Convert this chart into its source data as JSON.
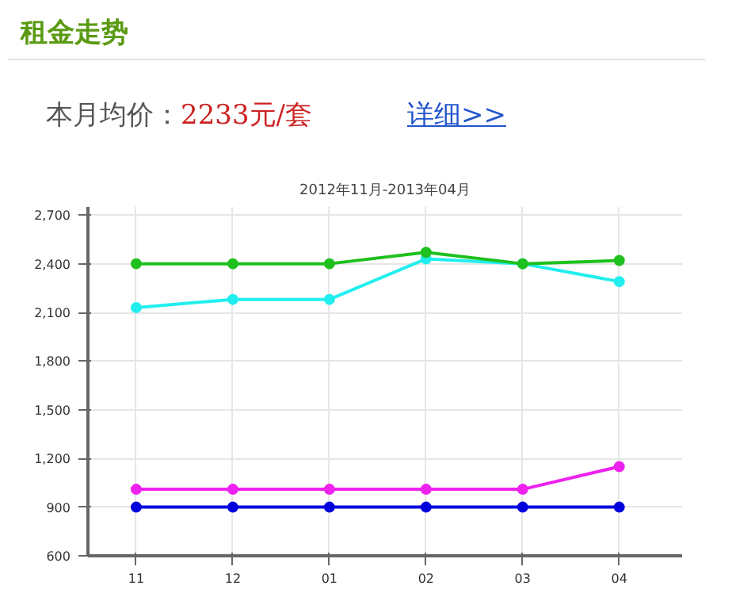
{
  "chart_data": {
    "type": "line",
    "title": "租金走势",
    "subtitle": "2012年11月-2013年04月",
    "annotations": [
      "本月均价：",
      "2233元/套",
      "详细>>"
    ],
    "categories": [
      "11",
      "12",
      "01",
      "02",
      "03",
      "04"
    ],
    "series": [
      {
        "color": "#1ec01e",
        "values": [
          2400,
          2400,
          2400,
          2470,
          2400,
          2420
        ]
      },
      {
        "color": "#22eeee",
        "values": [
          2130,
          2180,
          2180,
          2430,
          2400,
          2290
        ]
      },
      {
        "color": "#ee22ee",
        "values": [
          1010,
          1010,
          1010,
          1010,
          1010,
          1150
        ]
      },
      {
        "color": "#0000dd",
        "values": [
          900,
          900,
          900,
          900,
          900,
          900
        ]
      }
    ],
    "ylim": [
      600,
      2750
    ],
    "yticks": [
      {
        "value": 600,
        "label": "600"
      },
      {
        "value": 900,
        "label": "900"
      },
      {
        "value": 1200,
        "label": "1,200"
      },
      {
        "value": 1500,
        "label": "1,500"
      },
      {
        "value": 1800,
        "label": "1,800"
      },
      {
        "value": 2100,
        "label": "2,100"
      },
      {
        "value": 2400,
        "label": "2,400"
      },
      {
        "value": 2700,
        "label": "2,700"
      }
    ],
    "grid": true,
    "marker": "circle",
    "line_style": "solid"
  }
}
